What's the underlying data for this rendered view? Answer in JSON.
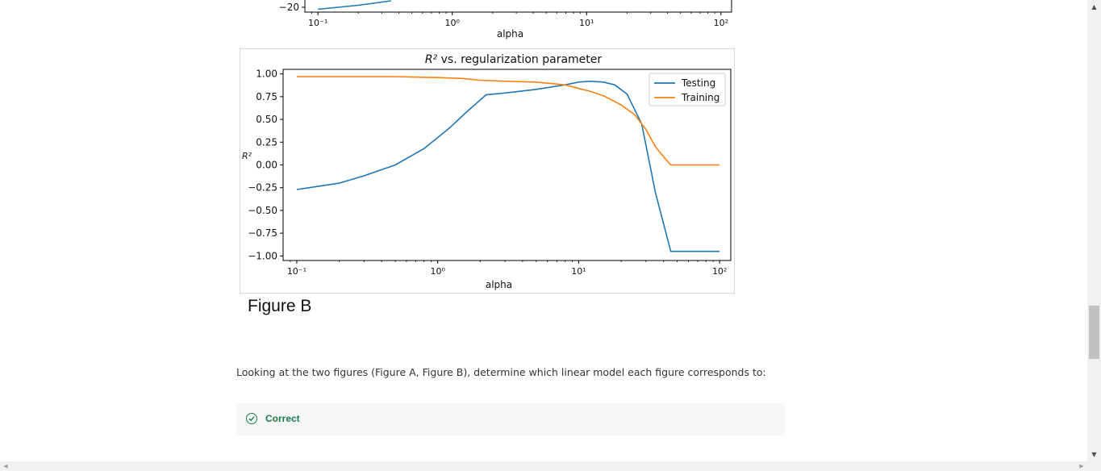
{
  "figure_label": "Figure B",
  "question_text": "Looking at the two figures (Figure A, Figure B), determine which linear model each figure corresponds to:",
  "feedback": {
    "status": "Correct",
    "color": "#1e7b4c"
  },
  "chart_data": [
    {
      "type": "line",
      "title": "",
      "xlabel": "alpha",
      "ylabel": "",
      "xscale": "log",
      "x_tick_labels": [
        "10⁻¹",
        "10⁰",
        "10¹",
        "10²"
      ],
      "y_tick_labels": [
        "−20"
      ],
      "partially_visible": true,
      "series": [
        {
          "color": "#1f77b4",
          "x": [
            0.1,
            0.2,
            0.35
          ],
          "y": [
            -20.5,
            -19.5,
            -18.4
          ]
        }
      ]
    },
    {
      "type": "line",
      "title_math": "R²",
      "title_text": " vs. regularization parameter",
      "xlabel": "alpha",
      "ylabel": "R²",
      "xscale": "log",
      "xlim": [
        0.08,
        120
      ],
      "ylim": [
        -1.05,
        1.05
      ],
      "x_ticks": [
        0.1,
        1,
        10,
        100
      ],
      "x_tick_labels": [
        "10⁻¹",
        "10⁰",
        "10¹",
        "10²"
      ],
      "y_ticks": [
        1.0,
        0.75,
        0.5,
        0.25,
        0.0,
        -0.25,
        -0.5,
        -0.75,
        -1.0
      ],
      "y_tick_labels": [
        "1.00",
        "0.75",
        "0.50",
        "0.25",
        "0.00",
        "−0.25",
        "−0.50",
        "−0.75",
        "−1.00"
      ],
      "legend": "top-right",
      "series": [
        {
          "name": "Testing",
          "color": "#1f77b4",
          "x": [
            0.1,
            0.2,
            0.3,
            0.5,
            0.8,
            1.2,
            1.6,
            2.2,
            3.0,
            5.0,
            8.0,
            10.0,
            12.0,
            15.0,
            18.0,
            22.0,
            28.0,
            35.0,
            45.0,
            60.0,
            100.0
          ],
          "y": [
            -0.27,
            -0.2,
            -0.12,
            0.0,
            0.18,
            0.4,
            0.58,
            0.77,
            0.79,
            0.83,
            0.88,
            0.91,
            0.92,
            0.91,
            0.88,
            0.78,
            0.45,
            -0.3,
            -0.95,
            -0.95,
            -0.95
          ]
        },
        {
          "name": "Training",
          "color": "#ff7f0e",
          "x": [
            0.1,
            0.5,
            1.0,
            1.5,
            2.0,
            3.0,
            5.0,
            8.0,
            10.0,
            12.0,
            15.0,
            20.0,
            25.0,
            30.0,
            35.0,
            40.0,
            45.0,
            60.0,
            100.0
          ],
          "y": [
            0.97,
            0.97,
            0.96,
            0.95,
            0.93,
            0.92,
            0.91,
            0.88,
            0.84,
            0.81,
            0.76,
            0.66,
            0.55,
            0.39,
            0.2,
            0.09,
            0.0,
            0.0,
            0.0
          ]
        }
      ]
    }
  ]
}
